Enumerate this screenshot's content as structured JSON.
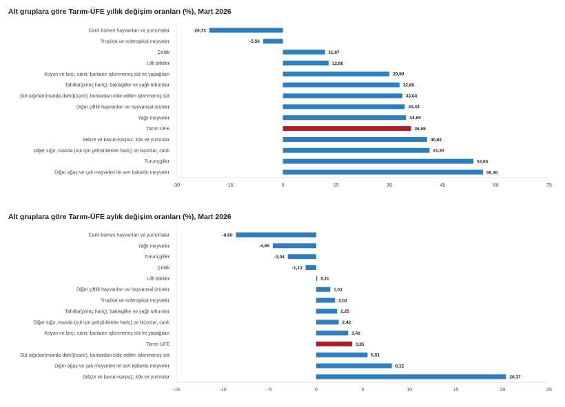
{
  "chart_data": [
    {
      "type": "bar",
      "orientation": "horizontal",
      "title": "Alt gruplara göre Tarım-ÜFE yıllık değişim oranları (%), Mart 2026",
      "categories": [
        "Canlı kümes hayvanları ve yumurtalar",
        "Tropikal ve subtropikal meyveler",
        "Çeltik",
        "Lifli bitkiler",
        "Koyun ve keçi, canlı; bunların işlenmemiş süt ve yapağıları",
        "Tahıllar(pirinç hariç), baklagiller ve yağlı tohumlar",
        "Süt sığırları(manda dahil)(canlı), bunlardan elde edilen işlenmemiş süt",
        "Diğer çiftlik hayvanları ve hayvansal ürünler",
        "Yağlı meyveler",
        "Tarım ÜFE",
        "Sebze ve kavun-karpuz, kök ve yumrular",
        "Diğer sığır, manda (süt için yetiştirilenler hariç) ve bizonlar, canlı",
        "Turunçgiller",
        "Diğer ağaç ve çalı meyveleri ile sert kabuklu meyveler"
      ],
      "values": [
        -20.73,
        -5.56,
        11.87,
        12.86,
        29.99,
        32.85,
        33.64,
        34.34,
        34.69,
        36.09,
        40.62,
        41.3,
        53.65,
        56.36
      ],
      "labels": [
        "-20,73",
        "-5,56",
        "11,87",
        "12,86",
        "29,99",
        "32,85",
        "33,64",
        "34,34",
        "34,69",
        "36,09",
        "40,62",
        "41,30",
        "53,65",
        "56,36"
      ],
      "highlight": "Tarım ÜFE",
      "xlim": [
        -30,
        75
      ],
      "ticks": [
        "-30",
        "-15",
        "0",
        "15",
        "30",
        "45",
        "60",
        "75"
      ],
      "tick_values": [
        -30,
        -15,
        0,
        15,
        30,
        45,
        60,
        75
      ],
      "grid": false
    },
    {
      "type": "bar",
      "orientation": "horizontal",
      "title": "Alt gruplara göre Tarım-ÜFE aylık değişim oranları (%), Mart 2026",
      "categories": [
        "Canlı kümes hayvanları ve yumurtalar",
        "Yağlı meyveler",
        "Turunçgiller",
        "Çeltik",
        "Lifli bitkiler",
        "Diğer çiftlik hayvanları ve hayvansal ürünler",
        "Tropikal ve subtropikal meyveler",
        "Tahıllar(pirinç hariç), baklagiller ve yağlı tohumlar",
        "Diğer sığır, manda (süt için yetiştirilenler hariç) ve bizonlar, canlı",
        "Koyun ve keçi, canlı; bunların işlenmemiş süt ve yapağıları",
        "Tarım ÜFE",
        "Süt sığırları(manda dahil)(canlı), bunlardan elde edilen işlenmemiş süt",
        "Diğer ağaç ve çalı meyveleri ile sert kabuklu meyveler",
        "Sebze ve kavun-karpuz, kök ve yumrular"
      ],
      "values": [
        -8.6,
        -4.65,
        -3.04,
        -1.13,
        0.11,
        1.51,
        2.03,
        2.25,
        2.42,
        3.43,
        3.85,
        5.51,
        8.12,
        20.37
      ],
      "labels": [
        "-8,60",
        "-4,65",
        "-3,04",
        "-1,13",
        "0,11",
        "1,51",
        "2,03",
        "2,25",
        "2,42",
        "3,43",
        "3,85",
        "5,51",
        "8,12",
        "20,37"
      ],
      "highlight": "Tarım ÜFE",
      "xlim": [
        -15,
        25
      ],
      "ticks": [
        "-15",
        "-10",
        "-5",
        "0",
        "5",
        "10",
        "15",
        "20",
        "25"
      ],
      "tick_values": [
        -15,
        -10,
        -5,
        0,
        5,
        10,
        15,
        20,
        25
      ],
      "grid": false
    }
  ],
  "colors": {
    "bar": "#2e7dbf",
    "highlight": "#b01c24",
    "axis": "#e4e4e4"
  }
}
